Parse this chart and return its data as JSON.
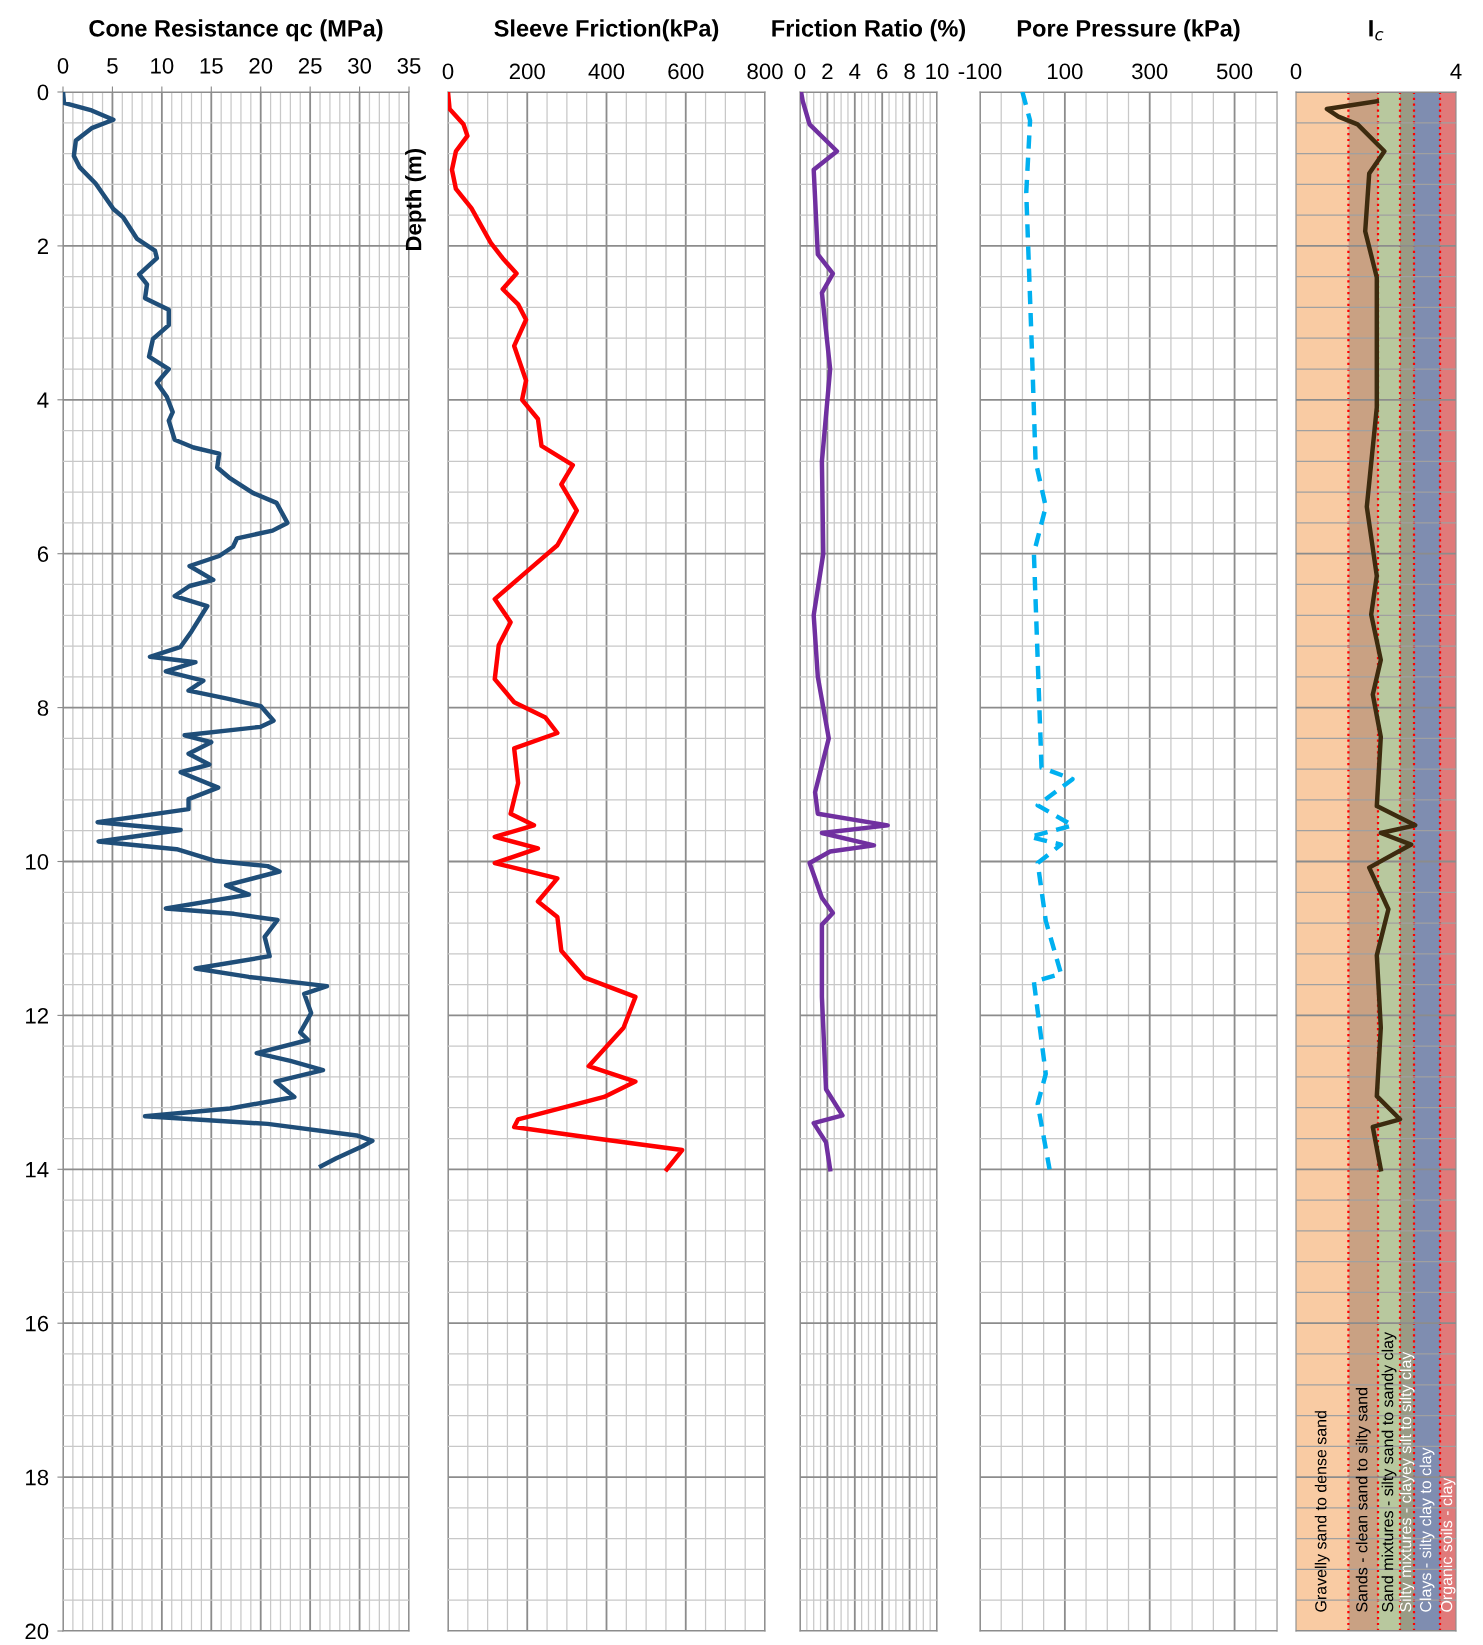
{
  "chart_data": [
    {
      "type": "line",
      "title": "Cone Resistance qc (MPa)",
      "xlim": [
        0,
        35
      ],
      "xticks": [
        0,
        5,
        10,
        15,
        20,
        25,
        30,
        35
      ],
      "ylim": [
        20,
        0
      ],
      "yticks": [
        0,
        2,
        4,
        6,
        8,
        10,
        12,
        14,
        16,
        18,
        20
      ],
      "grid": true,
      "marker": "none",
      "line_style": "solid",
      "series": [
        {
          "color": "#1f4e79",
          "x": [
            0,
            0.1,
            2.9,
            5.1,
            2.9,
            1.3,
            1.1,
            1.7,
            3.3,
            5.1,
            6.1,
            7.5,
            9.3,
            9.5,
            7.7,
            8.5,
            8.3,
            10.7,
            10.7,
            9.1,
            8.7,
            10.7,
            9.5,
            10.5,
            11.1,
            10.7,
            11.3,
            13.2,
            15.8,
            15.6,
            16.8,
            19.2,
            21.6,
            22.7,
            21.2,
            17.6,
            17.2,
            15.8,
            12.8,
            15.2,
            12.8,
            11.3,
            14.6,
            13.0,
            11.9,
            8.8,
            13.4,
            10.4,
            14.2,
            12.7,
            16.5,
            20.0,
            21.3,
            20.0,
            12.3,
            15.0,
            12.7,
            14.8,
            11.9,
            15.7,
            12.7,
            12.7,
            3.5,
            11.9,
            3.6,
            11.5,
            15.3,
            20.7,
            21.9,
            16.5,
            18.8,
            10.4,
            17.3,
            21.7,
            20.4,
            20.9,
            13.4,
            18.8,
            26.7,
            24.4,
            25.1,
            24.0,
            24.8,
            19.6,
            23.0,
            26.3,
            21.5,
            23.4,
            16.9,
            8.3,
            20.7,
            29.7,
            31.3,
            30.3,
            27.6,
            26.1
          ],
          "values": [
            0,
            0.14,
            0.24,
            0.36,
            0.47,
            0.63,
            0.83,
            0.98,
            1.19,
            1.52,
            1.63,
            1.91,
            2.06,
            2.16,
            2.37,
            2.5,
            2.68,
            2.83,
            3.03,
            3.21,
            3.44,
            3.6,
            3.78,
            3.96,
            4.16,
            4.27,
            4.52,
            4.62,
            4.7,
            4.88,
            5.01,
            5.21,
            5.34,
            5.6,
            5.7,
            5.8,
            5.91,
            6.03,
            6.16,
            6.34,
            6.42,
            6.55,
            6.68,
            7.01,
            7.21,
            7.34,
            7.41,
            7.53,
            7.65,
            7.78,
            7.88,
            7.98,
            8.17,
            8.25,
            8.36,
            8.45,
            8.6,
            8.74,
            8.84,
            9.04,
            9.19,
            9.32,
            9.49,
            9.59,
            9.74,
            9.84,
            9.99,
            10.06,
            10.13,
            10.31,
            10.43,
            10.61,
            10.68,
            10.76,
            10.98,
            11.23,
            11.39,
            11.5,
            11.62,
            11.72,
            11.97,
            12.22,
            12.32,
            12.49,
            12.59,
            12.71,
            12.86,
            13.06,
            13.21,
            13.31,
            13.41,
            13.56,
            13.63,
            13.7,
            13.86,
            13.96
          ]
        }
      ]
    },
    {
      "type": "line",
      "title": "Sleeve Friction(kPa)",
      "ylabel": "Depth (m)",
      "xlim": [
        0,
        800
      ],
      "xticks": [
        0,
        200,
        400,
        600,
        800
      ],
      "ylim": [
        20,
        0
      ],
      "yticks": [
        0,
        2,
        4,
        6,
        8,
        10,
        12,
        14,
        16,
        18,
        20
      ],
      "tick_labels": "x",
      "grid": true,
      "marker": "none",
      "line_style": "solid",
      "series": [
        {
          "color": "#ff0000",
          "x": [
            0,
            4,
            39,
            49,
            20,
            10,
            20,
            59,
            108,
            138,
            173,
            138,
            177,
            197,
            167,
            197,
            187,
            227,
            236,
            315,
            286,
            325,
            276,
            197,
            118,
            158,
            128,
            118,
            167,
            246,
            276,
            167,
            177,
            158,
            217,
            118,
            227,
            118,
            276,
            227,
            276,
            286,
            345,
            473,
            443,
            355,
            473,
            394,
            177,
            167,
            374,
            591,
            552
          ],
          "values": [
            0,
            0.22,
            0.42,
            0.57,
            0.77,
            1.01,
            1.26,
            1.51,
            1.96,
            2.16,
            2.36,
            2.56,
            2.76,
            2.96,
            3.3,
            3.75,
            4.0,
            4.25,
            4.6,
            4.85,
            5.1,
            5.44,
            5.89,
            6.24,
            6.59,
            6.89,
            7.19,
            7.63,
            7.93,
            8.13,
            8.33,
            8.53,
            8.98,
            9.38,
            9.53,
            9.68,
            9.83,
            10.02,
            10.22,
            10.52,
            10.72,
            11.16,
            11.51,
            11.76,
            12.16,
            12.66,
            12.86,
            13.06,
            13.35,
            13.45,
            13.6,
            13.75,
            14.0
          ]
        }
      ]
    },
    {
      "type": "line",
      "title": "Friction Ratio (%)",
      "xlim": [
        0,
        10
      ],
      "xticks": [
        0,
        2,
        4,
        6,
        8,
        10
      ],
      "ylim": [
        20,
        0
      ],
      "yticks": [
        0,
        2,
        4,
        6,
        8,
        10,
        12,
        14,
        16,
        18,
        20
      ],
      "tick_labels": "x",
      "grid": true,
      "marker": "none",
      "line_style": "solid",
      "series": [
        {
          "color": "#7030a0",
          "x": [
            0.1,
            0.2,
            0.7,
            2.7,
            1.0,
            1.3,
            2.4,
            1.6,
            2.2,
            1.6,
            1.7,
            1.0,
            1.3,
            2.1,
            1.1,
            1.3,
            6.4,
            1.6,
            5.4,
            2.2,
            0.7,
            1.6,
            2.4,
            1.6,
            1.6,
            1.9,
            3.1,
            1.0,
            1.9,
            2.2
          ],
          "values": [
            0.02,
            0.12,
            0.42,
            0.77,
            1.01,
            2.11,
            2.36,
            2.61,
            3.6,
            4.8,
            6.0,
            6.8,
            7.6,
            8.4,
            9.1,
            9.38,
            9.53,
            9.63,
            9.79,
            9.87,
            10.02,
            10.47,
            10.67,
            10.82,
            11.76,
            12.96,
            13.3,
            13.4,
            13.65,
            14.0
          ]
        }
      ]
    },
    {
      "type": "line",
      "title": "Pore Pressure (kPa)",
      "xlim": [
        -100,
        600
      ],
      "xticks": [
        -100,
        100,
        300,
        500
      ],
      "ylim": [
        20,
        0
      ],
      "yticks": [
        0,
        2,
        4,
        6,
        8,
        10,
        12,
        14,
        16,
        18,
        20
      ],
      "tick_labels": "x",
      "grid": true,
      "marker": "none",
      "line_style": "dashed",
      "series": [
        {
          "color": "#00b0f0",
          "x": [
            0,
            18,
            9,
            22,
            31,
            55,
            27,
            36,
            45,
            118,
            36,
            118,
            18,
            91,
            36,
            55,
            91,
            27,
            55,
            36,
            64
          ],
          "values": [
            0,
            0.37,
            1.31,
            3.3,
            4.8,
            5.39,
            5.99,
            7.38,
            8.78,
            8.93,
            9.27,
            9.53,
            9.68,
            9.78,
            10.02,
            10.77,
            11.46,
            11.56,
            12.76,
            13.15,
            14.0
          ]
        }
      ]
    },
    {
      "type": "line",
      "title": "I$_{c}$",
      "xlim": [
        0,
        4
      ],
      "xticks": [
        0,
        4
      ],
      "ylim": [
        20,
        0
      ],
      "yticks": [
        0,
        2,
        4,
        6,
        8,
        10,
        12,
        14,
        16,
        18,
        20
      ],
      "tick_labels": "x",
      "grid": "y",
      "marker": "none",
      "line_style": "solid",
      "series": [
        {
          "color": "#3d2b0f",
          "x": [
            2.02,
            0.77,
            1.06,
            1.54,
            2.21,
            1.83,
            1.73,
            2.02,
            2.02,
            1.77,
            2.02,
            1.88,
            2.12,
            1.92,
            2.12,
            2.02,
            2.98,
            2.12,
            2.88,
            1.83,
            2.31,
            2.02,
            2.12,
            2.02,
            2.6,
            1.92,
            2.12
          ],
          "values": [
            0.12,
            0.22,
            0.32,
            0.42,
            0.77,
            1.06,
            1.81,
            2.41,
            4.1,
            5.39,
            6.29,
            6.79,
            7.38,
            7.83,
            8.38,
            9.28,
            9.53,
            9.63,
            9.78,
            10.08,
            10.62,
            11.22,
            12.16,
            13.05,
            13.35,
            13.45,
            14.0
          ]
        }
      ],
      "bands": [
        {
          "axis": "x",
          "from": 0,
          "to": 1.31,
          "label": "Gravelly sand to dense sand",
          "color": "#f9cba3"
        },
        {
          "axis": "x",
          "from": 1.31,
          "to": 2.05,
          "label": "Sands - clean sand to silty sand",
          "color": "#c9a183"
        },
        {
          "axis": "x",
          "from": 2.05,
          "to": 2.6,
          "label": "Sand mixtures - silty sand to sandy clay",
          "color": "#b8c89e"
        },
        {
          "axis": "x",
          "from": 2.6,
          "to": 2.95,
          "label": "Silty mixtures - clayey silt to silty clay",
          "color": "#999b85"
        },
        {
          "axis": "x",
          "from": 2.95,
          "to": 3.6,
          "label": "Clays - silty clay to clay",
          "color": "#7f8db0"
        },
        {
          "axis": "x",
          "from": 3.6,
          "to": 4,
          "label": "Organic soils - clay",
          "color": "#e07a7a"
        }
      ],
      "ref_lines": [
        {
          "axis": "x",
          "value": 1.31,
          "color": "#ff0000",
          "line_style": "dotted"
        },
        {
          "axis": "x",
          "value": 2.05,
          "color": "#ff0000",
          "line_style": "dotted"
        },
        {
          "axis": "x",
          "value": 2.6,
          "color": "#ff0000",
          "line_style": "dotted"
        },
        {
          "axis": "x",
          "value": 2.95,
          "color": "#ff0000",
          "line_style": "dotted"
        },
        {
          "axis": "x",
          "value": 3.6,
          "color": "#ff0000",
          "line_style": "dotted"
        }
      ]
    }
  ]
}
